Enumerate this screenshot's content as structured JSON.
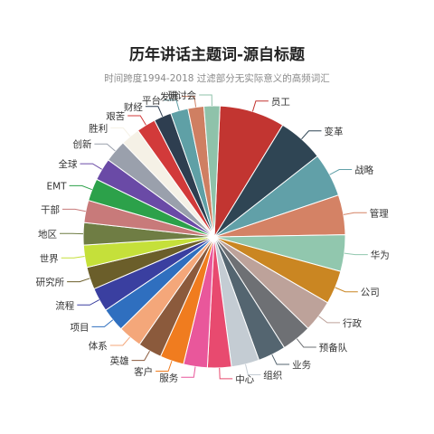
{
  "chart_data": {
    "type": "pie",
    "title": "历年讲话主题词-源自标题",
    "subtitle": "时间跨度1994-2018 过滤部分无实际意义的高频词汇",
    "slices": [
      {
        "label": "员工",
        "value": 8.2,
        "color": "#c23531"
      },
      {
        "label": "变革",
        "value": 5.8,
        "color": "#2f4554"
      },
      {
        "label": "战略",
        "value": 5.5,
        "color": "#61a0a8"
      },
      {
        "label": "管理",
        "value": 5.0,
        "color": "#d48265"
      },
      {
        "label": "华为",
        "value": 4.6,
        "color": "#91c7ae"
      },
      {
        "label": "公司",
        "value": 4.2,
        "color": "#ca8622"
      },
      {
        "label": "行政",
        "value": 4.0,
        "color": "#bda29a"
      },
      {
        "label": "预备队",
        "value": 3.8,
        "color": "#6e7074"
      },
      {
        "label": "业务",
        "value": 3.5,
        "color": "#546570"
      },
      {
        "label": "组织",
        "value": 3.5,
        "color": "#c4ccd3"
      },
      {
        "label": "中心",
        "value": 3.0,
        "color": "#e84a6f"
      },
      {
        "label": "服务",
        "value": 3.0,
        "color": "#e9579b"
      },
      {
        "label": "客户",
        "value": 3.0,
        "color": "#f07c1f"
      },
      {
        "label": "英雄",
        "value": 3.0,
        "color": "#8b5a3c"
      },
      {
        "label": "体系",
        "value": 3.0,
        "color": "#f4a77a"
      },
      {
        "label": "项目",
        "value": 3.0,
        "color": "#2f6fbf"
      },
      {
        "label": "流程",
        "value": 3.0,
        "color": "#3a3fa0"
      },
      {
        "label": "研究所",
        "value": 2.8,
        "color": "#6b5e2a"
      },
      {
        "label": "世界",
        "value": 2.8,
        "color": "#c5e03a"
      },
      {
        "label": "地区",
        "value": 2.8,
        "color": "#6f7d44"
      },
      {
        "label": "干部",
        "value": 2.8,
        "color": "#c87a7a"
      },
      {
        "label": "EMT",
        "value": 2.8,
        "color": "#2ca14a"
      },
      {
        "label": "全球",
        "value": 2.8,
        "color": "#6a4aa6"
      },
      {
        "label": "创新",
        "value": 2.8,
        "color": "#9aa0ac"
      },
      {
        "label": "胜利",
        "value": 2.4,
        "color": "#f5f1e6"
      },
      {
        "label": "艰苦",
        "value": 2.4,
        "color": "#d23a3a"
      },
      {
        "label": "财经",
        "value": 2.2,
        "color": "#2e3e50"
      },
      {
        "label": "平台",
        "value": 2.2,
        "color": "#5fa0a6"
      },
      {
        "label": "发展",
        "value": 2.0,
        "color": "#cf7f62"
      },
      {
        "label": "研讨会",
        "value": 2.0,
        "color": "#8fc2aa"
      }
    ]
  }
}
